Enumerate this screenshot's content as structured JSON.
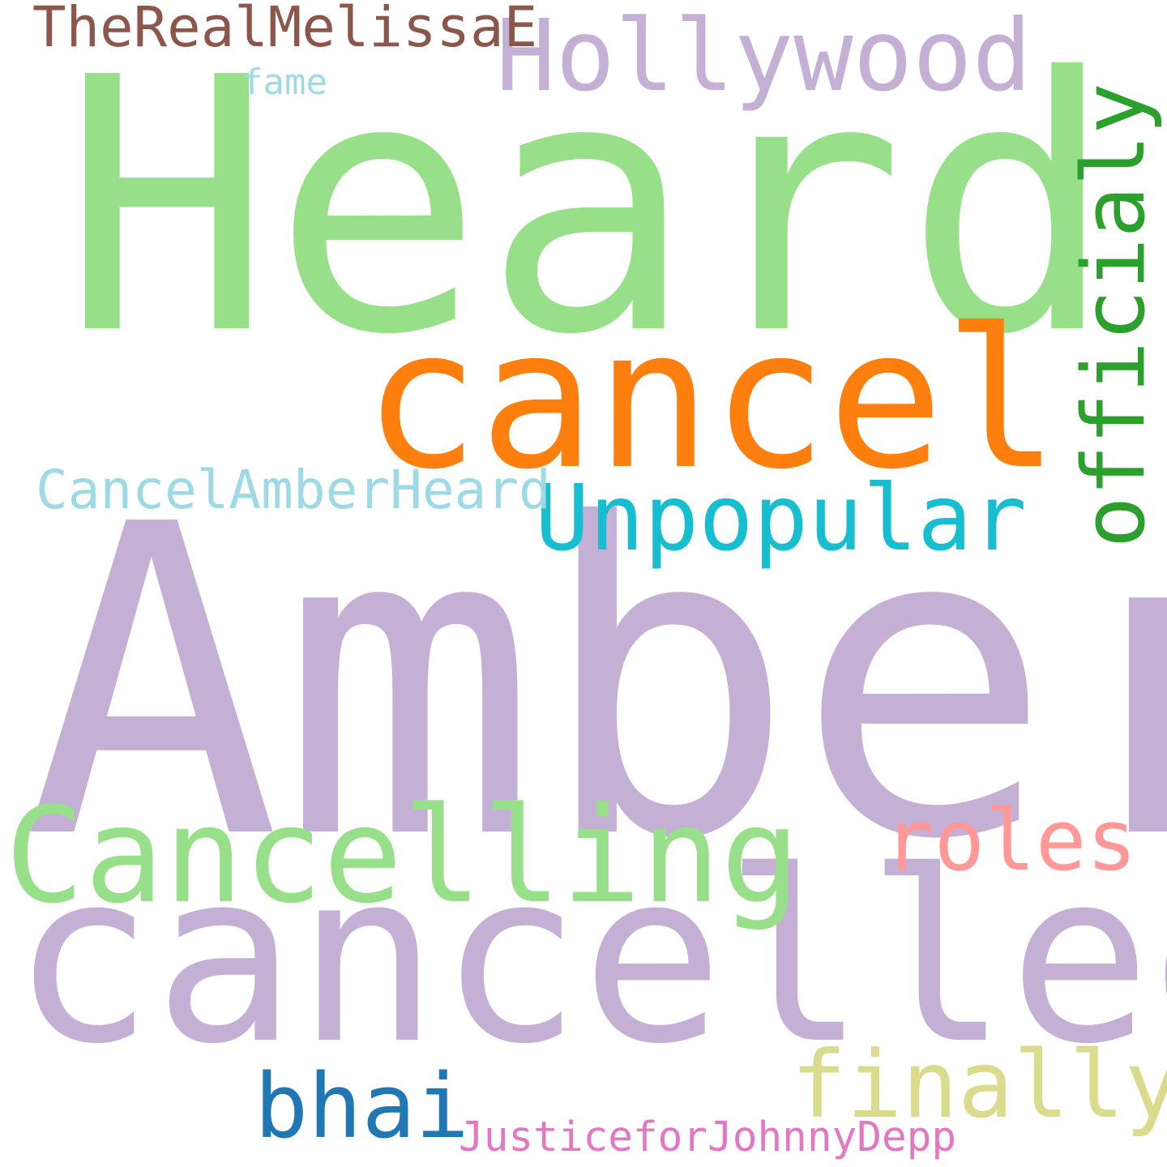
{
  "words": [
    {
      "text": "Heard",
      "color": "#98df8a"
    },
    {
      "text": "Amber",
      "color": "#c5b0d5"
    },
    {
      "text": "cancelled",
      "color": "#c5b0d5"
    },
    {
      "text": "cancel",
      "color": "#ff7f0e"
    },
    {
      "text": "Cancelling",
      "color": "#98df8a"
    },
    {
      "text": "Hollywood",
      "color": "#c5b0d5"
    },
    {
      "text": "officialy",
      "color": "#2ca02c"
    },
    {
      "text": "Unpopular",
      "color": "#17becf"
    },
    {
      "text": "finally",
      "color": "#dbdb8d"
    },
    {
      "text": "roles",
      "color": "#ff9896"
    },
    {
      "text": "bhai",
      "color": "#1f77b4"
    },
    {
      "text": "TheRealMelissaE",
      "color": "#8c564b"
    },
    {
      "text": "CancelAmberHeard",
      "color": "#9edae5"
    },
    {
      "text": "JusticeforJohnnyDepp",
      "color": "#e377c2"
    },
    {
      "text": "fame",
      "color": "#9edae5"
    }
  ]
}
